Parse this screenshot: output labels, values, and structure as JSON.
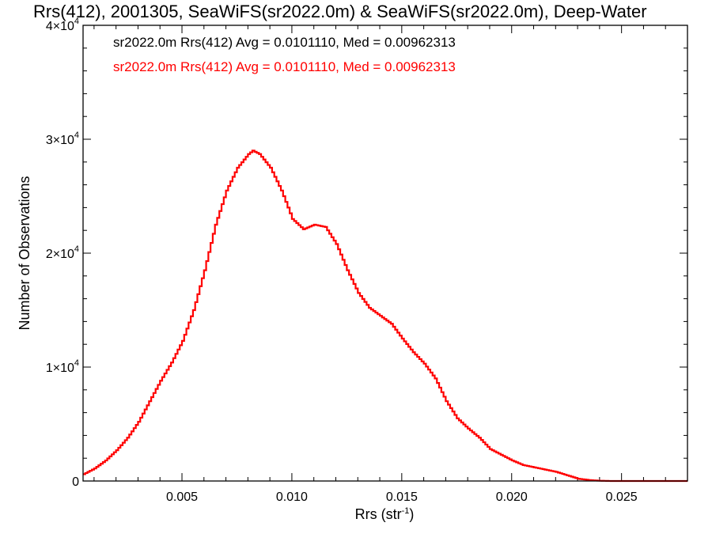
{
  "chart_data": {
    "type": "histogram",
    "title": "Rrs(412), 2001305, SeaWiFS(sr2022.0m) & SeaWiFS(sr2022.0m), Deep-Water",
    "xlabel": "Rrs (str",
    "xlabel_sup": "-1",
    "xlabel_suffix": ")",
    "ylabel": "Number of Observations",
    "xlim": [
      0.0005,
      0.028
    ],
    "ylim": [
      0,
      40000
    ],
    "grid": false,
    "x_ticks": [
      {
        "value": 0.005,
        "label": "0.005"
      },
      {
        "value": 0.01,
        "label": "0.010"
      },
      {
        "value": 0.015,
        "label": "0.015"
      },
      {
        "value": 0.02,
        "label": "0.020"
      },
      {
        "value": 0.025,
        "label": "0.025"
      }
    ],
    "y_ticks": [
      {
        "value": 0,
        "mant": "0",
        "exp": ""
      },
      {
        "value": 10000,
        "mant": "1×10",
        "exp": "4"
      },
      {
        "value": 20000,
        "mant": "2×10",
        "exp": "4"
      },
      {
        "value": 30000,
        "mant": "3×10",
        "exp": "4"
      },
      {
        "value": 40000,
        "mant": "4×10",
        "exp": "4"
      }
    ],
    "legend_placement": "top-left",
    "legend": [
      {
        "text": "sr2022.0m Rrs(412) Avg = 0.0101110, Med = 0.00962313",
        "color": "#000000"
      },
      {
        "text": "sr2022.0m Rrs(412) Avg = 0.0101110, Med = 0.00962313",
        "color": "#ff0000"
      }
    ],
    "series": [
      {
        "color": "#ff0000",
        "points": [
          [
            0.0005,
            600
          ],
          [
            0.001,
            1100
          ],
          [
            0.0015,
            1800
          ],
          [
            0.002,
            2700
          ],
          [
            0.0025,
            3800
          ],
          [
            0.003,
            5200
          ],
          [
            0.0035,
            7000
          ],
          [
            0.004,
            8800
          ],
          [
            0.0045,
            10400
          ],
          [
            0.005,
            12300
          ],
          [
            0.0055,
            15000
          ],
          [
            0.006,
            18500
          ],
          [
            0.0065,
            22500
          ],
          [
            0.007,
            25500
          ],
          [
            0.0075,
            27500
          ],
          [
            0.008,
            28700
          ],
          [
            0.0082,
            29000
          ],
          [
            0.0085,
            28700
          ],
          [
            0.009,
            27500
          ],
          [
            0.0095,
            25500
          ],
          [
            0.01,
            23000
          ],
          [
            0.0105,
            22100
          ],
          [
            0.011,
            22500
          ],
          [
            0.0115,
            22300
          ],
          [
            0.012,
            20800
          ],
          [
            0.0125,
            18500
          ],
          [
            0.013,
            16500
          ],
          [
            0.0135,
            15200
          ],
          [
            0.014,
            14500
          ],
          [
            0.0145,
            13800
          ],
          [
            0.015,
            12500
          ],
          [
            0.0155,
            11300
          ],
          [
            0.016,
            10300
          ],
          [
            0.0165,
            9000
          ],
          [
            0.017,
            7000
          ],
          [
            0.0175,
            5500
          ],
          [
            0.018,
            4600
          ],
          [
            0.0185,
            3800
          ],
          [
            0.019,
            2800
          ],
          [
            0.0195,
            2300
          ],
          [
            0.02,
            1800
          ],
          [
            0.0205,
            1400
          ],
          [
            0.021,
            1200
          ],
          [
            0.0215,
            1000
          ],
          [
            0.022,
            800
          ],
          [
            0.0225,
            500
          ],
          [
            0.023,
            200
          ],
          [
            0.0235,
            80
          ],
          [
            0.024,
            20
          ],
          [
            0.0245,
            0
          ],
          [
            0.028,
            0
          ]
        ]
      }
    ]
  }
}
